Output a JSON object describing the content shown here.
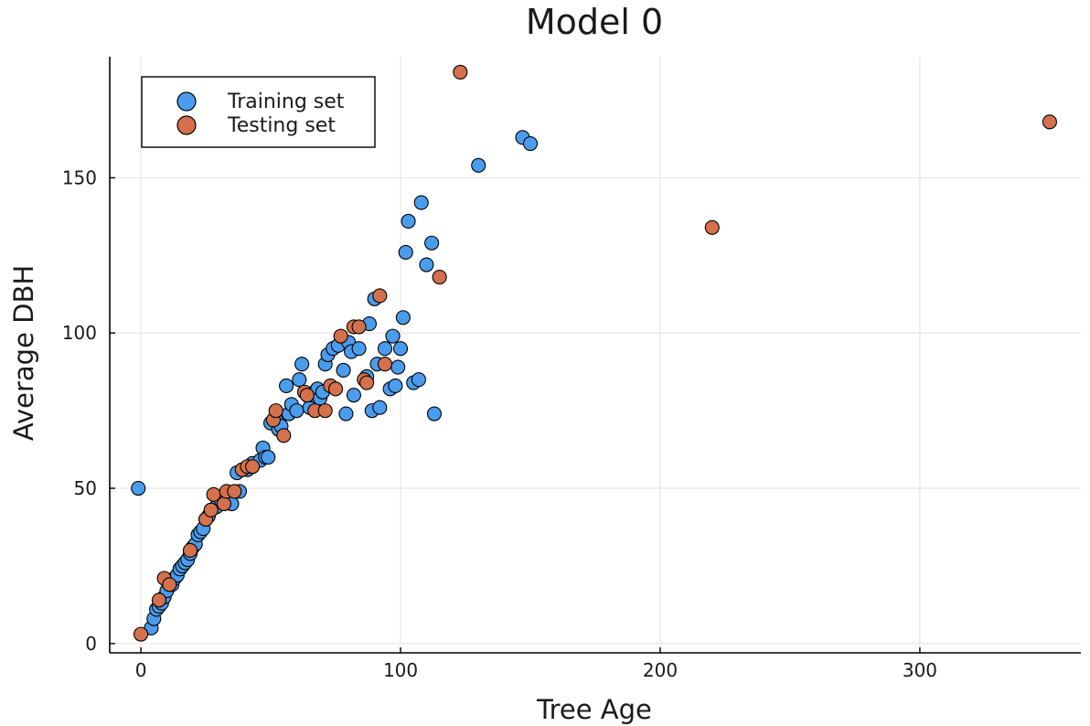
{
  "chart_data": {
    "type": "scatter",
    "title": "Model 0",
    "xlabel": "Tree Age",
    "ylabel": "Average DBH",
    "xlim": [
      -12,
      362
    ],
    "ylim": [
      -3,
      189
    ],
    "xticks": [
      0,
      100,
      200,
      300
    ],
    "yticks": [
      0,
      50,
      100,
      150
    ],
    "grid": true,
    "legend_position": "top-left",
    "series": [
      {
        "name": "Training set",
        "color": "#4a9ced",
        "points": [
          [
            -1,
            50
          ],
          [
            4,
            5
          ],
          [
            5,
            8
          ],
          [
            6,
            11
          ],
          [
            7,
            12
          ],
          [
            8,
            13
          ],
          [
            9,
            15
          ],
          [
            10,
            17
          ],
          [
            12,
            19
          ],
          [
            13,
            21
          ],
          [
            14,
            22
          ],
          [
            15,
            24
          ],
          [
            16,
            25
          ],
          [
            17,
            26
          ],
          [
            18,
            27
          ],
          [
            19,
            29
          ],
          [
            20,
            31
          ],
          [
            21,
            32
          ],
          [
            22,
            35
          ],
          [
            23,
            36
          ],
          [
            24,
            37
          ],
          [
            25,
            40
          ],
          [
            26,
            41
          ],
          [
            27,
            43
          ],
          [
            29,
            44
          ],
          [
            31,
            46
          ],
          [
            33,
            47
          ],
          [
            35,
            45
          ],
          [
            37,
            55
          ],
          [
            38,
            49
          ],
          [
            41,
            56
          ],
          [
            43,
            58
          ],
          [
            46,
            59
          ],
          [
            47,
            63
          ],
          [
            48,
            60
          ],
          [
            49,
            60
          ],
          [
            50,
            71
          ],
          [
            52,
            72
          ],
          [
            53,
            69
          ],
          [
            54,
            70
          ],
          [
            56,
            83
          ],
          [
            57,
            74
          ],
          [
            58,
            77
          ],
          [
            60,
            75
          ],
          [
            61,
            85
          ],
          [
            62,
            90
          ],
          [
            65,
            76
          ],
          [
            66,
            80
          ],
          [
            67,
            81
          ],
          [
            68,
            82
          ],
          [
            69,
            79
          ],
          [
            70,
            81
          ],
          [
            71,
            90
          ],
          [
            72,
            93
          ],
          [
            74,
            95
          ],
          [
            76,
            96
          ],
          [
            78,
            88
          ],
          [
            79,
            74
          ],
          [
            80,
            97
          ],
          [
            81,
            94
          ],
          [
            82,
            80
          ],
          [
            84,
            95
          ],
          [
            87,
            86
          ],
          [
            88,
            103
          ],
          [
            89,
            75
          ],
          [
            90,
            111
          ],
          [
            91,
            90
          ],
          [
            92,
            76
          ],
          [
            94,
            95
          ],
          [
            96,
            82
          ],
          [
            97,
            99
          ],
          [
            98,
            83
          ],
          [
            99,
            89
          ],
          [
            100,
            95
          ],
          [
            101,
            105
          ],
          [
            102,
            126
          ],
          [
            103,
            136
          ],
          [
            105,
            84
          ],
          [
            107,
            85
          ],
          [
            108,
            142
          ],
          [
            110,
            122
          ],
          [
            112,
            129
          ],
          [
            113,
            74
          ],
          [
            130,
            154
          ],
          [
            147,
            163
          ],
          [
            150,
            161
          ]
        ]
      },
      {
        "name": "Testing set",
        "color": "#d4714c",
        "points": [
          [
            0,
            3
          ],
          [
            7,
            14
          ],
          [
            9,
            21
          ],
          [
            11,
            19
          ],
          [
            19,
            30
          ],
          [
            25,
            40
          ],
          [
            27,
            43
          ],
          [
            28,
            48
          ],
          [
            32,
            45
          ],
          [
            33,
            49
          ],
          [
            36,
            49
          ],
          [
            39,
            56
          ],
          [
            41,
            57
          ],
          [
            43,
            57
          ],
          [
            51,
            72
          ],
          [
            52,
            75
          ],
          [
            55,
            67
          ],
          [
            63,
            81
          ],
          [
            64,
            80
          ],
          [
            67,
            75
          ],
          [
            71,
            75
          ],
          [
            73,
            83
          ],
          [
            75,
            82
          ],
          [
            77,
            99
          ],
          [
            82,
            102
          ],
          [
            84,
            102
          ],
          [
            86,
            85
          ],
          [
            87,
            84
          ],
          [
            92,
            112
          ],
          [
            94,
            90
          ],
          [
            115,
            118
          ],
          [
            123,
            184
          ],
          [
            220,
            134
          ],
          [
            350,
            168
          ]
        ]
      }
    ]
  }
}
